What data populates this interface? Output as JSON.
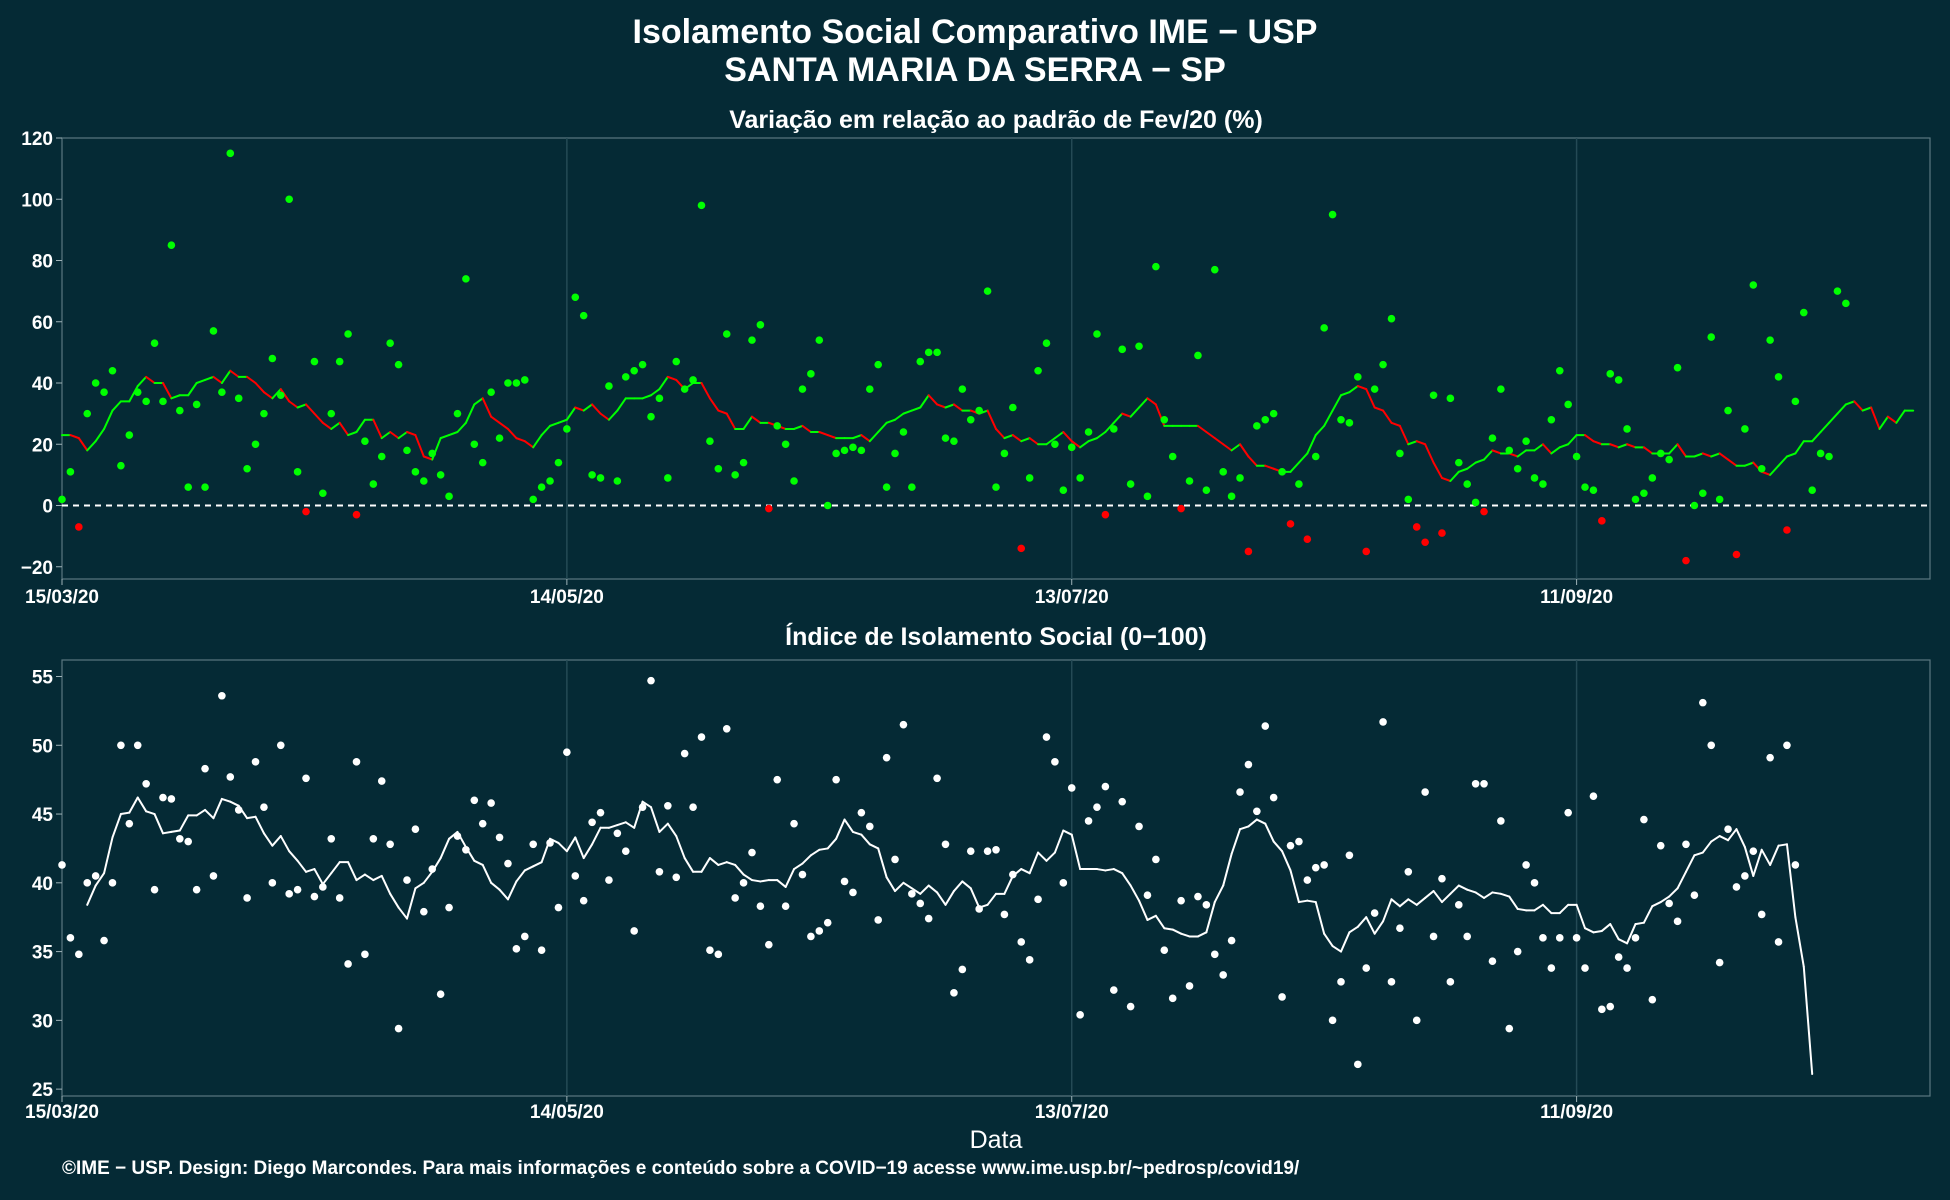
{
  "title_line1": "Isolamento Social Comparativo IME − USP",
  "title_line2": "SANTA MARIA DA SERRA − SP",
  "footer": "©IME − USP. Design: Diego Marcondes. Para mais informações e conteúdo sobre a COVID−19 acesse www.ime.usp.br/~pedrosp/covid19/",
  "colors": {
    "background": "#052a35",
    "positive": "#00ff00",
    "negative": "#ff0000",
    "index": "#ffffff",
    "grid": "#244a55"
  },
  "chart_data": [
    {
      "type": "scatter",
      "title": "Variação em relação ao padrão de Fev/20 (%)",
      "xlabel": "",
      "ylabel": "",
      "start_date": "15/03/20",
      "x_ticks": [
        {
          "day": 0,
          "label": "15/03/20"
        },
        {
          "day": 60,
          "label": "14/05/20"
        },
        {
          "day": 120,
          "label": "13/07/20"
        },
        {
          "day": 180,
          "label": "11/09/20"
        }
      ],
      "x_range": [
        0,
        222
      ],
      "ylim": [
        -24,
        120
      ],
      "y_ticks": [
        -20,
        0,
        20,
        40,
        60,
        80,
        100,
        120
      ],
      "grid": true,
      "reference_line": 0,
      "series": [
        {
          "name": "",
          "kind": "points",
          "values": [
            2,
            11,
            -7,
            30,
            40,
            37,
            44,
            13,
            23,
            37,
            34,
            53,
            34,
            85,
            31,
            6,
            33,
            6,
            57,
            37,
            115,
            35,
            12,
            20,
            30,
            48,
            36,
            100,
            11,
            -2,
            47,
            4,
            30,
            47,
            56,
            -3,
            21,
            7,
            16,
            53,
            46,
            18,
            11,
            8,
            17,
            10,
            3,
            30,
            74,
            20,
            14,
            37,
            22,
            40,
            40,
            41,
            2,
            6,
            8,
            14,
            25,
            68,
            62,
            10,
            9,
            39,
            8,
            42,
            44,
            46,
            29,
            35,
            9,
            47,
            38,
            41,
            98,
            21,
            12,
            56,
            10,
            14,
            54,
            59,
            -1,
            26,
            20,
            8,
            38,
            43,
            54,
            0,
            17,
            18,
            19,
            18,
            38,
            46,
            6,
            17,
            24,
            6,
            47,
            50,
            50,
            22,
            21,
            38,
            28,
            31,
            70,
            6,
            17,
            32,
            -14,
            9,
            44,
            53,
            20,
            5,
            19,
            9,
            24,
            56,
            -3,
            25,
            51,
            7,
            52,
            3,
            78,
            28,
            16,
            -1,
            8,
            49,
            5,
            77,
            11,
            3,
            9,
            -15,
            26,
            28,
            30,
            11,
            -6,
            7,
            -11,
            16,
            58,
            95,
            28,
            27,
            42,
            -15,
            38,
            46,
            61,
            17,
            2,
            -7,
            -12,
            36,
            -9,
            35,
            14,
            7,
            1,
            -2,
            22,
            38,
            18,
            12,
            21,
            9,
            7,
            28,
            44,
            33,
            16,
            6,
            5,
            -5,
            43,
            41,
            25,
            2,
            4,
            9,
            17,
            15,
            45,
            -18,
            0,
            4,
            55,
            2,
            31,
            -16,
            25,
            72,
            12,
            54,
            42,
            -8,
            34,
            63,
            5,
            17,
            16,
            70,
            66
          ]
        },
        {
          "name": "",
          "kind": "moving_average",
          "values": [
            23,
            23,
            22,
            18,
            21,
            25,
            31,
            34,
            34,
            39,
            42,
            40,
            40,
            35,
            36,
            36,
            40,
            41,
            42,
            40,
            44,
            42,
            42,
            40,
            37,
            35,
            38,
            34,
            32,
            33,
            30,
            27,
            25,
            27,
            23,
            24,
            28,
            28,
            22,
            24,
            22,
            24,
            23,
            16,
            15,
            22,
            23,
            24,
            27,
            33,
            35,
            29,
            27,
            25,
            22,
            21,
            19,
            23,
            26,
            27,
            28,
            32,
            31,
            33,
            30,
            28,
            31,
            35,
            35,
            35,
            36,
            38,
            42,
            41,
            38,
            40,
            40,
            35,
            31,
            30,
            25,
            25,
            29,
            27,
            27,
            26,
            25,
            25,
            26,
            24,
            24,
            23,
            22,
            22,
            22,
            23,
            21,
            24,
            27,
            28,
            30,
            31,
            32,
            36,
            33,
            32,
            33,
            31,
            31,
            30,
            31,
            25,
            22,
            23,
            21,
            22,
            20,
            20,
            22,
            24,
            21,
            19,
            21,
            22,
            24,
            27,
            30,
            29,
            32,
            35,
            33,
            26,
            26,
            26,
            26,
            26,
            24,
            22,
            20,
            18,
            20,
            16,
            13,
            13,
            12,
            11,
            11,
            14,
            17,
            23,
            26,
            31,
            36,
            37,
            39,
            38,
            32,
            31,
            27,
            26,
            20,
            21,
            20,
            14,
            9,
            8,
            11,
            12,
            14,
            15,
            18,
            17,
            17,
            16,
            18,
            18,
            20,
            17,
            19,
            20,
            23,
            23,
            21,
            20,
            20,
            19,
            20,
            19,
            19,
            17,
            17,
            17,
            20,
            16,
            16,
            17,
            16,
            17,
            15,
            13,
            13,
            14,
            11,
            10,
            13,
            16,
            17,
            21,
            21,
            24,
            27,
            30,
            33,
            34,
            31,
            32,
            25,
            29,
            27,
            31,
            31
          ]
        }
      ]
    },
    {
      "type": "scatter",
      "title": "Índice de Isolamento Social (0−100)",
      "xlabel": "Data",
      "ylabel": "",
      "start_date": "15/03/20",
      "x_ticks": [
        {
          "day": 0,
          "label": "15/03/20"
        },
        {
          "day": 60,
          "label": "14/05/20"
        },
        {
          "day": 120,
          "label": "13/07/20"
        },
        {
          "day": 180,
          "label": "11/09/20"
        }
      ],
      "x_range": [
        0,
        222
      ],
      "ylim": [
        24.5,
        56.2
      ],
      "y_ticks": [
        25,
        30,
        35,
        40,
        45,
        50,
        55
      ],
      "grid": true,
      "series": [
        {
          "name": "",
          "kind": "points",
          "values": [
            41.3,
            36,
            34.8,
            40,
            40.5,
            35.8,
            40,
            50,
            44.3,
            50,
            47.2,
            39.5,
            46.2,
            46.1,
            43.2,
            43,
            39.5,
            48.3,
            40.5,
            53.6,
            47.7,
            45.3,
            38.9,
            48.8,
            45.5,
            40,
            50,
            39.2,
            39.5,
            47.6,
            39,
            39.7,
            43.2,
            38.9,
            34.1,
            48.8,
            34.8,
            43.2,
            47.4,
            42.8,
            29.4,
            40.2,
            43.9,
            37.9,
            41,
            31.9,
            38.2,
            43.4,
            42.4,
            46,
            44.3,
            45.8,
            43.3,
            41.4,
            35.2,
            36.1,
            42.8,
            35.1,
            42.9,
            38.2,
            49.5,
            40.5,
            38.7,
            44.4,
            45.1,
            40.2,
            43.6,
            42.3,
            36.5,
            45.5,
            54.7,
            40.8,
            45.6,
            40.4,
            49.4,
            45.5,
            50.6,
            35.1,
            34.8,
            51.2,
            38.9,
            40,
            42.2,
            38.3,
            35.5,
            47.5,
            38.3,
            44.3,
            40.6,
            36.1,
            36.5,
            37.1,
            47.5,
            40.1,
            39.3,
            45.1,
            44.1,
            37.3,
            49.1,
            41.7,
            51.5,
            39.2,
            38.5,
            37.4,
            47.6,
            42.8,
            32,
            33.7,
            42.3,
            38.1,
            42.3,
            42.4,
            37.7,
            40.6,
            35.7,
            34.4,
            38.8,
            50.6,
            48.8,
            40,
            46.9,
            30.4,
            44.5,
            45.5,
            47,
            32.2,
            45.9,
            31,
            44.1,
            39.1,
            41.7,
            35.1,
            31.6,
            38.7,
            32.5,
            39,
            38.4,
            34.8,
            33.3,
            35.8,
            46.6,
            48.6,
            45.2,
            51.4,
            46.2,
            31.7,
            42.7,
            43,
            40.2,
            41.1,
            41.3,
            30,
            32.8,
            42,
            26.8,
            33.8,
            37.8,
            51.7,
            32.8,
            36.7,
            40.8,
            30,
            46.6,
            36.1,
            40.3,
            32.8,
            38.4,
            36.1,
            47.2,
            47.2,
            34.3,
            44.5,
            29.4,
            35,
            41.3,
            40,
            36,
            33.8,
            36,
            45.1,
            36,
            33.8,
            46.3,
            30.8,
            31,
            34.6,
            33.8,
            36,
            44.6,
            31.5,
            42.7,
            38.5,
            37.2,
            42.8,
            39.1,
            53.1,
            50,
            34.2,
            43.9,
            39.7,
            40.5,
            42.3,
            37.7,
            49.1,
            35.7,
            50,
            41.3
          ]
        },
        {
          "name": "",
          "kind": "moving_average",
          "values": [
            null,
            null,
            null,
            38.4,
            39.8,
            40.7,
            43.3,
            45,
            45.1,
            46.2,
            45.2,
            45,
            43.6,
            43.7,
            43.8,
            44.9,
            44.9,
            45.3,
            44.7,
            46.1,
            45.9,
            45.6,
            44.7,
            44.8,
            43.6,
            42.7,
            43.4,
            42.3,
            41.6,
            40.8,
            41,
            39.9,
            40.7,
            41.5,
            41.5,
            40.2,
            40.6,
            40.2,
            40.5,
            39.2,
            38.2,
            37.4,
            39.6,
            40,
            40.8,
            41.8,
            43.2,
            43.7,
            42.6,
            41.6,
            41.3,
            40,
            39.5,
            38.8,
            40.1,
            40.9,
            41.2,
            41.5,
            43.2,
            42.9,
            42.3,
            43.3,
            41.8,
            42.8,
            44,
            44,
            44.2,
            44.4,
            44,
            45.9,
            45.5,
            43.7,
            44.3,
            43.4,
            41.8,
            40.8,
            40.8,
            41.8,
            41.3,
            41.5,
            41.3,
            40.6,
            40.2,
            40.1,
            40.2,
            40.2,
            39.7,
            41,
            41.4,
            42,
            42.4,
            42.5,
            43.2,
            44.6,
            43.7,
            43.5,
            42.8,
            42.5,
            40.4,
            39.4,
            40,
            39.6,
            39.2,
            39.8,
            39.3,
            38.4,
            39.4,
            40.1,
            39.6,
            38.2,
            38.4,
            39.2,
            39.2,
            40.5,
            41,
            40.7,
            42.2,
            41.6,
            42.2,
            43.8,
            43.5,
            41,
            41,
            41,
            40.9,
            41,
            40.7,
            39.8,
            38.7,
            37.3,
            37.6,
            36.7,
            36.6,
            36.3,
            36.1,
            36.1,
            36.4,
            38.6,
            39.8,
            42.1,
            43.9,
            44.1,
            44.6,
            44.3,
            43,
            42.3,
            40.9,
            38.6,
            38.7,
            38.6,
            36.3,
            35.4,
            35,
            36.4,
            36.8,
            37.5,
            36.3,
            37.2,
            38.8,
            38.3,
            38.8,
            38.4,
            38.9,
            39.4,
            38.6,
            39.2,
            39.8,
            39.5,
            39.3,
            38.9,
            39.3,
            39.2,
            39,
            38.1,
            38,
            38,
            38.4,
            37.8,
            37.8,
            38.4,
            38.4,
            36.7,
            36.4,
            36.5,
            37,
            35.9,
            35.6,
            37,
            37.1,
            38.3,
            38.6,
            39,
            39.6,
            40.8,
            42,
            42.2,
            43,
            43.4,
            43.1,
            43.9,
            42.6,
            40.5,
            42.4,
            41.3,
            42.7,
            42.8,
            37.5,
            33.9,
            26.1
          ]
        }
      ]
    }
  ]
}
